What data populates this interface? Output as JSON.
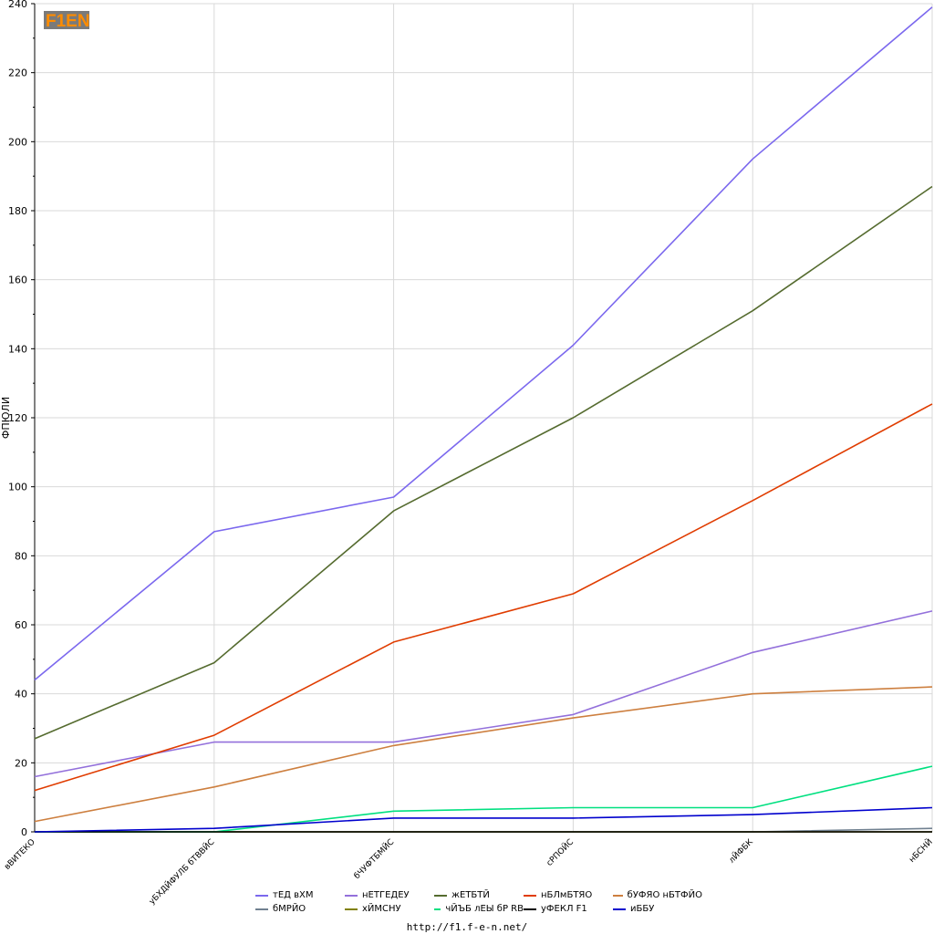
{
  "logo_text": "F1EN",
  "footer_url": "http://f1.f-e-n.net/",
  "chart_data": {
    "type": "line",
    "ylabel": "ФПЮЛИ",
    "xlabel": "",
    "ylim": [
      0,
      240
    ],
    "yticks": [
      0,
      20,
      40,
      60,
      80,
      100,
      120,
      140,
      160,
      180,
      200,
      220,
      240
    ],
    "grid": true,
    "legend_position": "bottom-center",
    "categories": [
      "вВИТЕКО",
      "уБХДЙФУЛБ бТВВЙС",
      "бЧУФТБМЙС",
      "сРПОЙС",
      "лЙФБК",
      "нБСНЙ"
    ],
    "series": [
      {
        "name": "тЕД вХМ",
        "color": "#7b68ee",
        "values": [
          44,
          87,
          97,
          141,
          195,
          239
        ]
      },
      {
        "name": "бМРЙО",
        "color": "#708090",
        "values": [
          0,
          0,
          0,
          0,
          0,
          1
        ]
      },
      {
        "name": "нЕТГЕДЕУ",
        "color": "#9370db",
        "values": [
          16,
          26,
          26,
          34,
          52,
          64
        ]
      },
      {
        "name": "хЙМСНУ",
        "color": "#808000",
        "values": [
          0,
          0,
          0,
          0,
          0,
          0
        ]
      },
      {
        "name": "жЕТБТЙ",
        "color": "#556b2f",
        "values": [
          27,
          49,
          93,
          120,
          151,
          187
        ]
      },
      {
        "name": "чЙЪБ лЕЫ бР RB",
        "color": "#00e080",
        "values": [
          0,
          0,
          6,
          7,
          7,
          19
        ]
      },
      {
        "name": "нБЛмБТЯО",
        "color": "#e03c00",
        "values": [
          12,
          28,
          55,
          69,
          96,
          124
        ]
      },
      {
        "name": "уФЕКЛ F1",
        "color": "#000000",
        "values": [
          0,
          0,
          0,
          0,
          0,
          0
        ]
      },
      {
        "name": "бУФЯО нБТФЙО",
        "color": "#cd7f3f",
        "values": [
          3,
          13,
          25,
          33,
          40,
          42
        ]
      },
      {
        "name": "иББУ",
        "color": "#0000cd",
        "values": [
          0,
          1,
          4,
          4,
          5,
          7
        ]
      }
    ]
  }
}
